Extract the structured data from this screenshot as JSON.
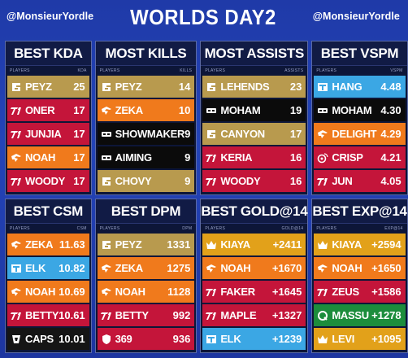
{
  "header": {
    "handle_left": "@MonsieurYordle",
    "title": "WORLDS DAY2",
    "handle_right": "@MonsieurYordle"
  },
  "team_colors": {
    "GEN": "#b89a4e",
    "T1": "#c4153a",
    "FNC": "#f07a1c",
    "DK": "#0a0a0a",
    "G2": "#111111",
    "TL": "#3fa9e6",
    "EDG": "#2a2a2a",
    "LOS": "#1a8a3a",
    "NRG": "#e0a21b"
  },
  "panels": [
    {
      "title": "BEST KDA",
      "col_left": "PLAYERS",
      "col_right": "KDA",
      "rows": [
        {
          "team": "GEN",
          "name": "PEYZ",
          "value": "25",
          "icon": "gen-logo-icon"
        },
        {
          "team": "T1",
          "name": "ONER",
          "value": "17",
          "icon": "t1-logo-icon"
        },
        {
          "team": "T1",
          "name": "JUNJIA",
          "value": "17",
          "icon": "t1-logo-icon"
        },
        {
          "team": "FNC",
          "name": "NOAH",
          "value": "17",
          "icon": "fnatic-logo-icon"
        },
        {
          "team": "T1",
          "name": "WOODY",
          "value": "17",
          "icon": "t1-logo-icon"
        }
      ]
    },
    {
      "title": "MOST KILLS",
      "col_left": "PLAYERS",
      "col_right": "KILLS",
      "rows": [
        {
          "team": "GEN",
          "name": "PEYZ",
          "value": "14",
          "icon": "gen-logo-icon"
        },
        {
          "team": "FNC",
          "name": "ZEKA",
          "value": "10",
          "icon": "fnatic-logo-icon"
        },
        {
          "team": "DK",
          "name": "SHOWMAKER",
          "value": "9",
          "icon": "dk-logo-icon"
        },
        {
          "team": "DK",
          "name": "AIMING",
          "value": "9",
          "icon": "dk-logo-icon"
        },
        {
          "team": "GEN",
          "name": "CHOVY",
          "value": "9",
          "icon": "gen-logo-icon"
        }
      ]
    },
    {
      "title": "MOST ASSISTS",
      "col_left": "PLAYERS",
      "col_right": "ASSISTS",
      "rows": [
        {
          "team": "GEN",
          "name": "LEHENDS",
          "value": "23",
          "icon": "gen-logo-icon"
        },
        {
          "team": "DK",
          "name": "MOHAM",
          "value": "19",
          "icon": "dk-logo-icon"
        },
        {
          "team": "GEN",
          "name": "CANYON",
          "value": "17",
          "icon": "gen-logo-icon"
        },
        {
          "team": "T1",
          "name": "KERIA",
          "value": "16",
          "icon": "t1-logo-icon"
        },
        {
          "team": "T1",
          "name": "WOODY",
          "value": "16",
          "icon": "t1-logo-icon"
        }
      ]
    },
    {
      "title": "BEST VSPM",
      "col_left": "PLAYERS",
      "col_right": "VSPM",
      "rows": [
        {
          "team": "TL",
          "name": "HANG",
          "value": "4.48",
          "icon": "tl-logo-icon"
        },
        {
          "team": "DK",
          "name": "MOHAM",
          "value": "4.30",
          "icon": "dk-logo-icon"
        },
        {
          "team": "FNC",
          "name": "DELIGHT",
          "value": "4.29",
          "icon": "fnatic-logo-icon"
        },
        {
          "team": "T1",
          "name": "CRISP",
          "value": "4.21",
          "icon": "weibo-logo-icon"
        },
        {
          "team": "T1",
          "name": "JUN",
          "value": "4.05",
          "icon": "t1-logo-icon"
        }
      ]
    },
    {
      "title": "BEST CSM",
      "col_left": "PLAYERS",
      "col_right": "CSM",
      "rows": [
        {
          "team": "FNC",
          "name": "ZEKA",
          "value": "11.63",
          "icon": "fnatic-logo-icon"
        },
        {
          "team": "TL",
          "name": "ELK",
          "value": "10.82",
          "icon": "tl-logo-icon"
        },
        {
          "team": "FNC",
          "name": "NOAH",
          "value": "10.69",
          "icon": "fnatic-logo-icon"
        },
        {
          "team": "T1",
          "name": "BETTY",
          "value": "10.61",
          "icon": "t1-logo-icon"
        },
        {
          "team": "G2",
          "name": "CAPS",
          "value": "10.01",
          "icon": "g2-logo-icon"
        }
      ]
    },
    {
      "title": "BEST DPM",
      "col_left": "PLAYERS",
      "col_right": "DPM",
      "rows": [
        {
          "team": "GEN",
          "name": "PEYZ",
          "value": "1331",
          "icon": "gen-logo-icon"
        },
        {
          "team": "FNC",
          "name": "ZEKA",
          "value": "1275",
          "icon": "fnatic-logo-icon"
        },
        {
          "team": "FNC",
          "name": "NOAH",
          "value": "1128",
          "icon": "fnatic-logo-icon"
        },
        {
          "team": "T1",
          "name": "BETTY",
          "value": "992",
          "icon": "t1-logo-icon"
        },
        {
          "team": "T1",
          "name": "369",
          "value": "936",
          "icon": "shield-logo-icon"
        }
      ]
    },
    {
      "title": "BEST GOLD@14",
      "col_left": "PLAYERS",
      "col_right": "GOLD@14",
      "rows": [
        {
          "team": "NRG",
          "name": "KIAYA",
          "value": "+2411",
          "icon": "crown-logo-icon"
        },
        {
          "team": "FNC",
          "name": "NOAH",
          "value": "+1670",
          "icon": "fnatic-logo-icon"
        },
        {
          "team": "T1",
          "name": "FAKER",
          "value": "+1645",
          "icon": "t1-logo-icon"
        },
        {
          "team": "T1",
          "name": "MAPLE",
          "value": "+1327",
          "icon": "t1-logo-icon"
        },
        {
          "team": "TL",
          "name": "ELK",
          "value": "+1239",
          "icon": "tl-logo-icon"
        }
      ]
    },
    {
      "title": "BEST EXP@14",
      "col_left": "PLAYERS",
      "col_right": "EXP@14",
      "rows": [
        {
          "team": "NRG",
          "name": "KIAYA",
          "value": "+2594",
          "icon": "crown-logo-icon"
        },
        {
          "team": "FNC",
          "name": "NOAH",
          "value": "+1650",
          "icon": "fnatic-logo-icon"
        },
        {
          "team": "T1",
          "name": "ZEUS",
          "value": "+1586",
          "icon": "t1-logo-icon"
        },
        {
          "team": "LOS",
          "name": "MASSU",
          "value": "+1278",
          "icon": "q-logo-icon"
        },
        {
          "team": "NRG",
          "name": "LEVI",
          "value": "+1095",
          "icon": "crown-logo-icon"
        }
      ]
    }
  ]
}
